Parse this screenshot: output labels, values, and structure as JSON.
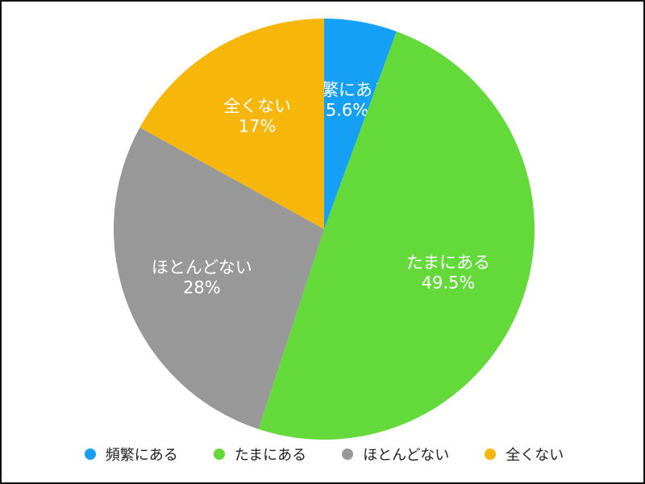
{
  "chart_data": {
    "type": "pie",
    "title": "",
    "categories": [
      "頻繁にある",
      "たまにある",
      "ほとんどない",
      "全くない"
    ],
    "values": [
      5.6,
      49.5,
      28,
      17
    ],
    "value_labels": [
      "5.6%",
      "49.5%",
      "28%",
      "17%"
    ],
    "colors": [
      "#16a0f5",
      "#63d93a",
      "#989898",
      "#f7b70a"
    ],
    "start": "12 o'clock, clockwise",
    "legend_placement": "bottom"
  }
}
